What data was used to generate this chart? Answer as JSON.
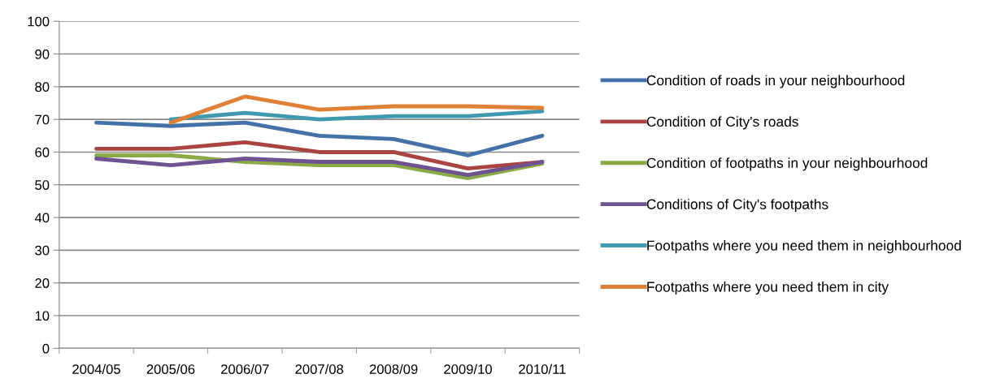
{
  "chart_data": {
    "type": "line",
    "categories": [
      "2004/05",
      "2005/06",
      "2006/07",
      "2007/08",
      "2008/09",
      "2009/10",
      "2010/11"
    ],
    "series": [
      {
        "name": "Condition of roads in your neighbourhood",
        "color": "#4472a8",
        "values": [
          69,
          68,
          69,
          65,
          64,
          59,
          65
        ]
      },
      {
        "name": "Condition of City's roads",
        "color": "#a94442",
        "values": [
          61,
          61,
          63,
          60,
          60,
          55,
          57
        ]
      },
      {
        "name": "Condition of footpaths in your neighbourhood",
        "color": "#8aaa48",
        "values": [
          59,
          59,
          57,
          56,
          56,
          52,
          56.5
        ]
      },
      {
        "name": "Conditions of City's footpaths",
        "color": "#6f5290",
        "values": [
          58,
          56,
          58,
          57,
          57,
          53,
          57
        ]
      },
      {
        "name": "Footpaths where you need them in neighbourhood",
        "color": "#3f9ab0",
        "values": [
          null,
          70,
          72,
          70,
          71,
          71,
          72.5
        ]
      },
      {
        "name": "Footpaths where you need them in city",
        "color": "#e07f36",
        "values": [
          null,
          69,
          77,
          73,
          74,
          74,
          73.5
        ]
      }
    ],
    "ylim": [
      0,
      100
    ],
    "yticks": [
      0,
      10,
      20,
      30,
      40,
      50,
      60,
      70,
      80,
      90,
      100
    ],
    "grid": "y",
    "legend": "right",
    "marker": "none",
    "line_style": "solid"
  }
}
